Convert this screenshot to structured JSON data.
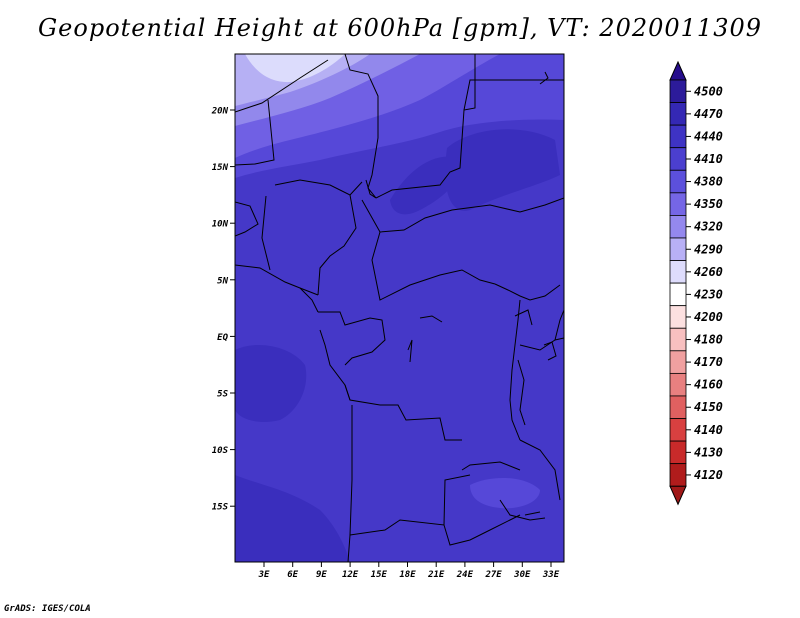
{
  "title": "Geopotential Height at 600hPa [gpm], VT: 2020011309",
  "credit": "GrADS: IGES/COLA",
  "map": {
    "lat_ticks": [
      "20N",
      "15N",
      "10N",
      "5N",
      "EQ",
      "5S",
      "10S",
      "15S"
    ],
    "lon_ticks": [
      "3E",
      "6E",
      "9E",
      "12E",
      "15E",
      "18E",
      "21E",
      "24E",
      "27E",
      "30E",
      "33E"
    ],
    "fill_colors": {
      "c4500": "#260d8c",
      "c4470": "#2e1a99",
      "c4440": "#3a2ebd",
      "c4410": "#4538c8",
      "c4380": "#5648d8",
      "c4350": "#7060e4",
      "c4320": "#9288ec",
      "c4290": "#b6b0f4",
      "c4260": "#dcdcfc"
    }
  },
  "colorbar": {
    "labels": [
      "4500",
      "4470",
      "4440",
      "4410",
      "4380",
      "4350",
      "4320",
      "4290",
      "4260",
      "4230",
      "4200",
      "4180",
      "4170",
      "4160",
      "4150",
      "4140",
      "4130",
      "4120"
    ],
    "colors": [
      "#2c1b9a",
      "#3428b4",
      "#3e33c4",
      "#4b3fcf",
      "#5c50dc",
      "#7566e6",
      "#9488ee",
      "#b8b0f6",
      "#dedcfc",
      "#ffffff",
      "#fce0e0",
      "#f8c0c0",
      "#f0a0a0",
      "#e88080",
      "#e06060",
      "#d84040",
      "#c82a2a",
      "#b01c1c"
    ],
    "top_color": "#260d8c",
    "bottom_color": "#a01818"
  }
}
